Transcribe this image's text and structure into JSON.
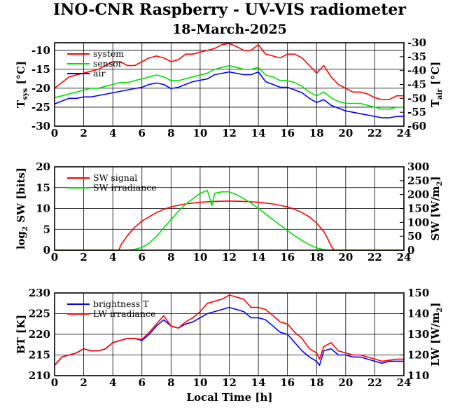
{
  "title": "INO-CNR Raspberry - UV-VIS radiometer",
  "date": "18-March-2025",
  "xlabel": "Local Time [h]",
  "chart_data": [
    {
      "type": "line",
      "ylabel": "T_sys [°C]",
      "y2label": "T_air [°C]",
      "xlim": [
        0,
        24
      ],
      "ylim": [
        -30,
        -8
      ],
      "y2lim": [
        -60,
        -30
      ],
      "xticks": [
        "0",
        "2",
        "4",
        "6",
        "8",
        "10",
        "12",
        "14",
        "16",
        "18",
        "20",
        "22",
        "24"
      ],
      "yticks": [
        "-30",
        "-25",
        "-20",
        "-15",
        "-10"
      ],
      "y2ticks": [
        "-60",
        "-55",
        "-50",
        "-45",
        "-40",
        "-35",
        "-30"
      ],
      "legend_position": "top-left",
      "grid": true,
      "series": [
        {
          "name": "system",
          "axis": "left",
          "color": "#ff0000",
          "x": [
            0,
            0.5,
            1,
            1.5,
            2,
            2.5,
            3,
            3.5,
            4,
            4.5,
            5,
            5.5,
            6,
            6.5,
            7,
            7.5,
            8,
            8.5,
            9,
            9.5,
            10,
            10.5,
            11,
            11.5,
            12,
            12.5,
            13,
            13.5,
            14,
            14.5,
            15,
            15.5,
            16,
            16.5,
            17,
            17.5,
            18,
            18.5,
            19,
            19.5,
            20,
            20.5,
            21,
            21.5,
            22,
            22.5,
            23,
            23.5,
            24
          ],
          "values": [
            -20,
            -18.5,
            -17,
            -16.5,
            -16,
            -15.5,
            -15,
            -14,
            -13,
            -13,
            -14,
            -14,
            -13,
            -12,
            -11.5,
            -12,
            -13,
            -12.5,
            -11,
            -11,
            -10.5,
            -10,
            -9.5,
            -8.5,
            -8.2,
            -9,
            -10,
            -10,
            -8.5,
            -11,
            -11.5,
            -12,
            -11,
            -11,
            -12,
            -14,
            -16,
            -14,
            -17,
            -19,
            -20,
            -21,
            -21,
            -21.5,
            -22.5,
            -23,
            -23,
            -22,
            -22
          ]
        },
        {
          "name": "sensor",
          "axis": "left",
          "color": "#00e000",
          "x": [
            0,
            0.5,
            1,
            1.5,
            2,
            2.5,
            3,
            3.5,
            4,
            4.5,
            5,
            5.5,
            6,
            6.5,
            7,
            7.5,
            8,
            8.5,
            9,
            9.5,
            10,
            10.5,
            11,
            11.5,
            12,
            12.5,
            13,
            13.5,
            14,
            14.5,
            15,
            15.5,
            16,
            16.5,
            17,
            17.5,
            18,
            18.5,
            19,
            19.5,
            20,
            20.5,
            21,
            21.5,
            22,
            22.5,
            23,
            23.5,
            24
          ],
          "values": [
            -22.5,
            -22,
            -21.5,
            -21,
            -20.5,
            -20,
            -20,
            -19.5,
            -19,
            -18.5,
            -18.5,
            -18,
            -17.5,
            -17,
            -16.5,
            -17,
            -18,
            -18,
            -17.5,
            -17,
            -16.5,
            -16,
            -15,
            -14.5,
            -14,
            -14.5,
            -15,
            -15,
            -14.5,
            -16.5,
            -17,
            -18,
            -18,
            -18.5,
            -19.5,
            -21,
            -22,
            -21,
            -22.5,
            -23.5,
            -24,
            -24,
            -24,
            -24.5,
            -25,
            -25.5,
            -25.5,
            -25,
            -25
          ]
        },
        {
          "name": "air",
          "axis": "right",
          "color": "#0000ff",
          "x": [
            0,
            0.5,
            1,
            1.5,
            2,
            2.5,
            3,
            3.5,
            4,
            4.5,
            5,
            5.5,
            6,
            6.5,
            7,
            7.5,
            8,
            8.5,
            9,
            9.5,
            10,
            10.5,
            11,
            11.5,
            12,
            12.5,
            13,
            13.5,
            14,
            14.5,
            15,
            15.5,
            16,
            16.5,
            17,
            17.5,
            18,
            18.5,
            19,
            19.5,
            20,
            20.5,
            21,
            21.5,
            22,
            22.5,
            23,
            23.5,
            24
          ],
          "values": [
            -52,
            -51,
            -50,
            -50,
            -49.5,
            -49.5,
            -49,
            -48.5,
            -48,
            -47.5,
            -47,
            -46.5,
            -46,
            -45,
            -44.5,
            -45,
            -46.5,
            -46,
            -45,
            -44,
            -43.5,
            -43,
            -41.5,
            -41,
            -40.5,
            -41,
            -41.5,
            -41.5,
            -40.5,
            -44,
            -45,
            -46,
            -46,
            -47,
            -48,
            -50,
            -51.5,
            -50.5,
            -52.5,
            -53.5,
            -54.5,
            -55,
            -55.5,
            -56,
            -56.5,
            -57,
            -57,
            -56.5,
            -56.5
          ]
        }
      ]
    },
    {
      "type": "line",
      "ylabel": "log2 SW [bits]",
      "y2label": "SW [W/m2]",
      "xlim": [
        0,
        24
      ],
      "ylim": [
        0,
        20
      ],
      "y2lim": [
        0,
        300
      ],
      "xticks": [
        "0",
        "2",
        "4",
        "6",
        "8",
        "10",
        "12",
        "14",
        "16",
        "18",
        "20",
        "22",
        "24"
      ],
      "yticks": [
        "0",
        "5",
        "10",
        "15",
        "20"
      ],
      "y2ticks": [
        "0",
        "50",
        "100",
        "150",
        "200",
        "250",
        "300"
      ],
      "legend_position": "top-left",
      "grid": true,
      "series": [
        {
          "name": "SW signal",
          "axis": "left",
          "color": "#ff0000",
          "x": [
            0,
            4.4,
            4.6,
            5,
            5.5,
            6,
            6.5,
            7,
            7.5,
            8,
            9,
            10,
            11,
            12,
            13,
            14,
            15,
            16,
            16.5,
            17,
            17.5,
            18,
            18.5,
            18.8,
            19,
            19.2,
            24
          ],
          "values": [
            0,
            0,
            1.5,
            3.5,
            5.5,
            7,
            8,
            9,
            9.8,
            10.4,
            11.1,
            11.5,
            11.7,
            11.8,
            11.7,
            11.5,
            11.1,
            10.4,
            9.8,
            9,
            8,
            6.5,
            4.5,
            2.5,
            1,
            0,
            0
          ]
        },
        {
          "name": "SW irradiance",
          "axis": "right",
          "color": "#00e000",
          "x": [
            0,
            5,
            5.5,
            6,
            6.5,
            7,
            7.5,
            8,
            8.5,
            9,
            9.5,
            10,
            10.5,
            10.8,
            11,
            11.5,
            12,
            12.5,
            13,
            13.5,
            14,
            14.5,
            15,
            15.5,
            16,
            16.5,
            17,
            17.5,
            18,
            18.5,
            19,
            24
          ],
          "values": [
            0,
            0,
            3,
            10,
            25,
            50,
            80,
            110,
            140,
            165,
            185,
            205,
            215,
            160,
            205,
            210,
            210,
            200,
            185,
            170,
            150,
            130,
            110,
            90,
            70,
            52,
            35,
            20,
            8,
            2,
            0,
            0
          ]
        }
      ]
    },
    {
      "type": "line",
      "ylabel": "BT [K]",
      "y2label": "LW [W/m2]",
      "xlim": [
        0,
        24
      ],
      "ylim": [
        210,
        230
      ],
      "y2lim": [
        110,
        150
      ],
      "xticks": [
        "0",
        "2",
        "4",
        "6",
        "8",
        "10",
        "12",
        "14",
        "16",
        "18",
        "20",
        "22",
        "24"
      ],
      "yticks": [
        "210",
        "215",
        "220",
        "225",
        "230"
      ],
      "y2ticks": [
        "110",
        "120",
        "130",
        "140",
        "150"
      ],
      "legend_position": "top-left",
      "grid": true,
      "series": [
        {
          "name": "brightness T",
          "axis": "left",
          "color": "#0000ff",
          "x": [
            0,
            0.5,
            1,
            1.5,
            2,
            2.5,
            3,
            3.5,
            4,
            4.5,
            5,
            5.5,
            6,
            6.5,
            7,
            7.5,
            8,
            8.5,
            9,
            9.5,
            10,
            10.5,
            11,
            11.5,
            12,
            12.5,
            13,
            13.5,
            14,
            14.5,
            15,
            15.5,
            16,
            16.5,
            17,
            17.5,
            18,
            18.2,
            18.5,
            19,
            19.5,
            20,
            20.5,
            21,
            21.5,
            22,
            22.5,
            23,
            23.5,
            24
          ],
          "values": [
            212.5,
            214.5,
            215,
            215.5,
            216.5,
            216,
            216,
            216.5,
            218,
            218.5,
            219,
            219,
            218.5,
            220,
            222,
            223.5,
            222,
            221.5,
            222.5,
            223,
            224,
            225,
            225.5,
            226,
            226.5,
            226,
            225.5,
            224,
            224,
            223.5,
            222,
            220.5,
            220,
            218,
            216,
            214.5,
            213.5,
            212.5,
            216,
            216.5,
            215,
            215,
            214.5,
            214.5,
            214,
            213.5,
            213,
            213.5,
            213.5,
            213.5
          ]
        },
        {
          "name": "LW irradiance",
          "axis": "right",
          "color": "#ff0000",
          "x": [
            0,
            0.5,
            1,
            1.5,
            2,
            2.5,
            3,
            3.5,
            4,
            4.5,
            5,
            5.5,
            6,
            6.5,
            7,
            7.5,
            8,
            8.5,
            9,
            9.5,
            10,
            10.5,
            11,
            11.5,
            12,
            12.5,
            13,
            13.5,
            14,
            14.5,
            15,
            15.5,
            16,
            16.5,
            17,
            17.5,
            18,
            18.2,
            18.5,
            19,
            19.5,
            20,
            20.5,
            21,
            21.5,
            22,
            22.5,
            23,
            23.5,
            24
          ],
          "values": [
            115,
            119,
            120,
            121,
            123,
            122,
            122,
            123,
            126,
            127,
            128,
            128,
            127.5,
            131,
            135,
            139,
            134,
            133,
            136,
            138,
            141,
            145,
            146,
            147,
            149,
            148,
            147,
            143,
            143,
            142,
            139,
            136,
            135,
            131,
            128,
            123,
            121,
            118,
            124,
            126,
            122,
            121,
            120,
            120,
            119,
            118,
            117,
            117.5,
            118,
            118
          ]
        }
      ]
    }
  ]
}
